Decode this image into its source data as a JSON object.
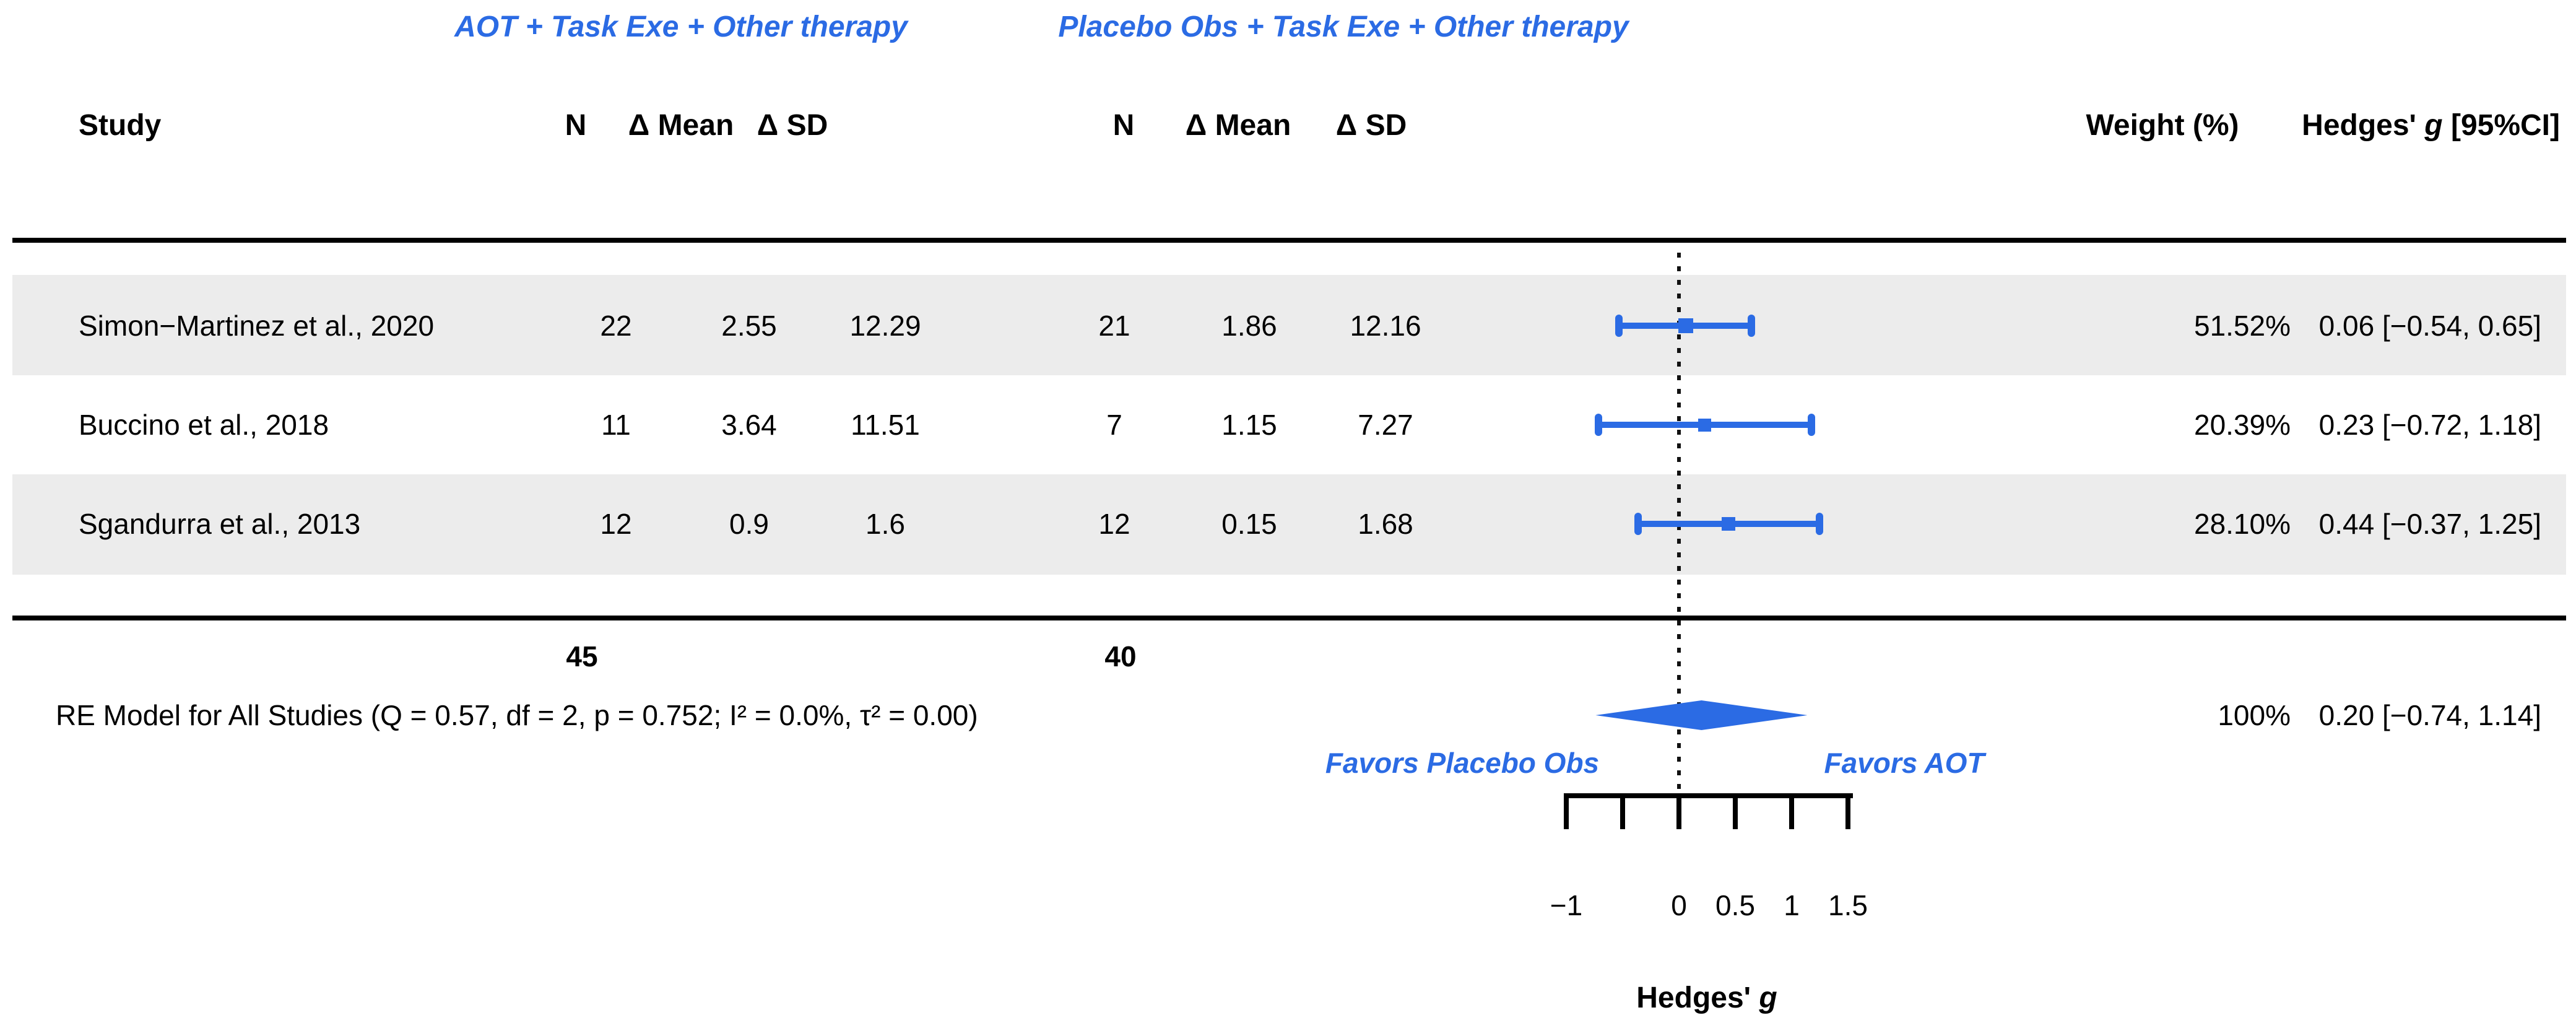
{
  "group_headers": {
    "treatment": "AOT + Task Exe + Other therapy",
    "control": "Placebo Obs + Task Exe + Other therapy"
  },
  "columns": {
    "study": "Study",
    "n": "N",
    "delta_mean": "Δ Mean",
    "delta_sd": "Δ SD",
    "weight": "Weight (%)",
    "hedges_pre": "Hedges' ",
    "hedges_g": "g",
    "hedges_post": " [95%CI]"
  },
  "rows": [
    {
      "label": "Simon−Martinez et al., 2020",
      "n1": "22",
      "mean1": "2.55",
      "sd1": "12.29",
      "n2": "21",
      "mean2": "1.86",
      "sd2": "12.16",
      "weight": "51.52%",
      "estimate_ci": "0.06 [−0.54, 0.65]"
    },
    {
      "label": "Buccino et al., 2018",
      "n1": "11",
      "mean1": "3.64",
      "sd1": "11.51",
      "n2": "7",
      "mean2": "1.15",
      "sd2": "7.27",
      "weight": "20.39%",
      "estimate_ci": "0.23 [−0.72, 1.18]"
    },
    {
      "label": "Sgandurra et al., 2013",
      "n1": "12",
      "mean1": "0.9",
      "sd1": "1.6",
      "n2": "12",
      "mean2": "0.15",
      "sd2": "1.68",
      "weight": "28.10%",
      "estimate_ci": "0.44 [−0.37, 1.25]"
    }
  ],
  "totals": {
    "n1": "45",
    "n2": "40"
  },
  "summary": {
    "label": "RE Model for All Studies (Q = 0.57, df = 2, p = 0.752; I² = 0.0%, τ² = 0.00)",
    "weight": "100%",
    "estimate_ci": "0.20 [−0.74, 1.14]"
  },
  "favors": {
    "left": "Favors Placebo Obs",
    "right": "Favors AOT"
  },
  "axis_title": {
    "pre": "Hedges' ",
    "g": "g"
  },
  "colors": {
    "accent_blue": "#2b6be4",
    "row_band": "#ececec",
    "text": "#000000"
  },
  "chart_data": {
    "type": "forest",
    "title": "",
    "xlabel": "Hedges' g",
    "x_axis": {
      "range": [
        -1,
        1.5
      ],
      "ticks": [
        -1,
        -0.5,
        0,
        0.5,
        1,
        1.5
      ],
      "labeled_ticks": [
        {
          "value": -1,
          "label": "−1"
        },
        {
          "value": 0,
          "label": "0"
        },
        {
          "value": 0.5,
          "label": "0.5"
        },
        {
          "value": 1,
          "label": "1"
        },
        {
          "value": 1.5,
          "label": "1.5"
        }
      ],
      "zero_line": 0
    },
    "studies": [
      {
        "name": "Simon−Martinez et al., 2020",
        "treatment": {
          "n": 22,
          "mean_change": 2.55,
          "sd_change": 12.29
        },
        "control": {
          "n": 21,
          "mean_change": 1.86,
          "sd_change": 12.16
        },
        "weight_pct": 51.52,
        "g": 0.06,
        "ci": [
          -0.54,
          0.65
        ]
      },
      {
        "name": "Buccino et al., 2018",
        "treatment": {
          "n": 11,
          "mean_change": 3.64,
          "sd_change": 11.51
        },
        "control": {
          "n": 7,
          "mean_change": 1.15,
          "sd_change": 7.27
        },
        "weight_pct": 20.39,
        "g": 0.23,
        "ci": [
          -0.72,
          1.18
        ]
      },
      {
        "name": "Sgandurra et al., 2013",
        "treatment": {
          "n": 12,
          "mean_change": 0.9,
          "sd_change": 1.6
        },
        "control": {
          "n": 12,
          "mean_change": 0.15,
          "sd_change": 1.68
        },
        "weight_pct": 28.1,
        "g": 0.44,
        "ci": [
          -0.37,
          1.25
        ]
      }
    ],
    "totals": {
      "treatment_n": 45,
      "control_n": 40
    },
    "summary": {
      "model": "RE Model for All Studies",
      "Q": 0.57,
      "df": 2,
      "p": 0.752,
      "I2_pct": 0.0,
      "tau2": 0.0,
      "weight_pct": 100,
      "g": 0.2,
      "ci": [
        -0.74,
        1.14
      ]
    },
    "legend_position": "none",
    "grid": false
  }
}
